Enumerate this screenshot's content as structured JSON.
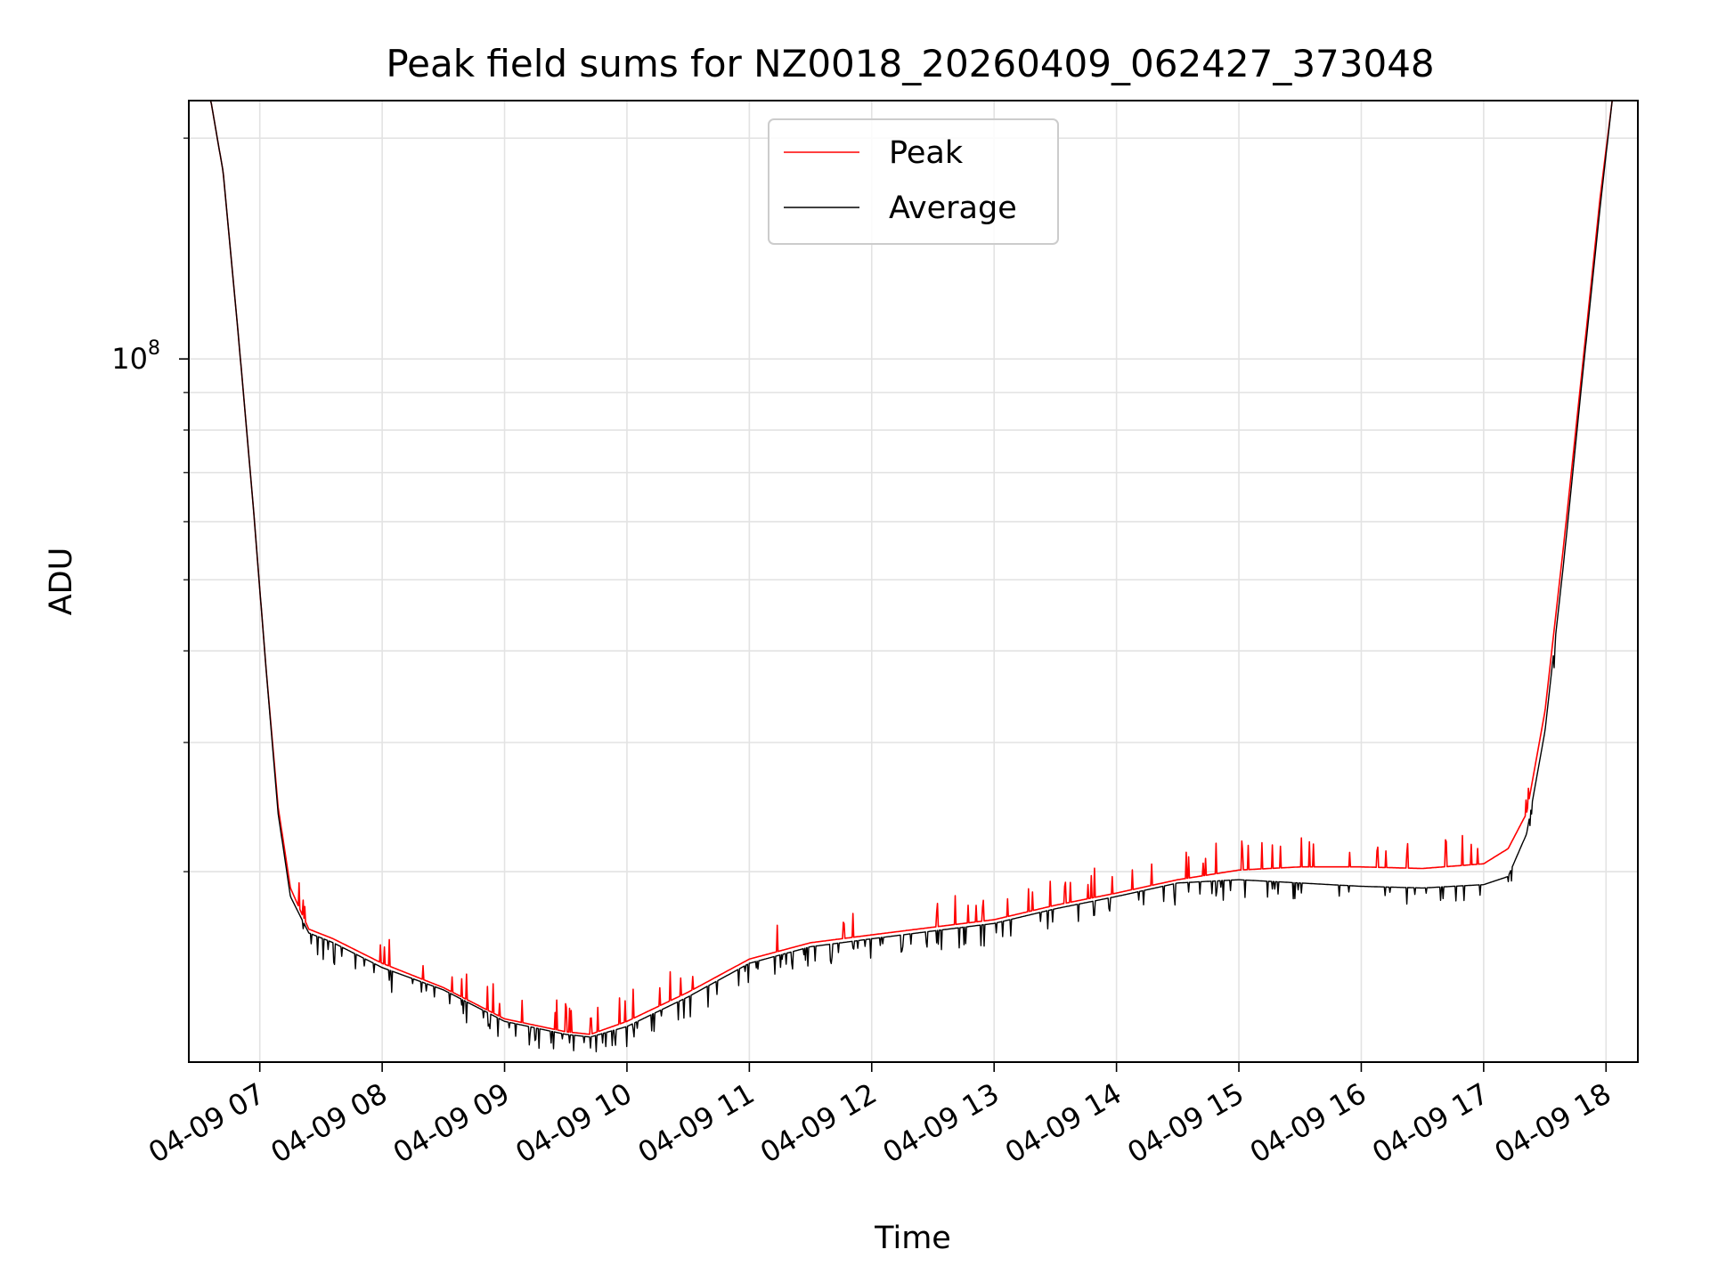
{
  "chart_data": {
    "type": "line",
    "title": "Peak field sums for NZ0018_20260409_062427_373048",
    "xlabel": "Time",
    "ylabel": "ADU",
    "y_scale": "log",
    "y_tick_label": {
      "base": "10",
      "exponent": "8",
      "value": 100000000
    },
    "ylim": [
      11000000,
      225000000
    ],
    "xlim_hours": [
      6.42,
      18.26
    ],
    "grid": true,
    "legend_position": "upper-center",
    "x_ticks": [
      {
        "hour": 7,
        "label": "04-09 07"
      },
      {
        "hour": 8,
        "label": "04-09 08"
      },
      {
        "hour": 9,
        "label": "04-09 09"
      },
      {
        "hour": 10,
        "label": "04-09 10"
      },
      {
        "hour": 11,
        "label": "04-09 11"
      },
      {
        "hour": 12,
        "label": "04-09 12"
      },
      {
        "hour": 13,
        "label": "04-09 13"
      },
      {
        "hour": 14,
        "label": "04-09 14"
      },
      {
        "hour": 15,
        "label": "04-09 15"
      },
      {
        "hour": 16,
        "label": "04-09 16"
      },
      {
        "hour": 17,
        "label": "04-09 17"
      },
      {
        "hour": 18,
        "label": "04-09 18"
      }
    ],
    "series": [
      {
        "name": "Peak",
        "color": "#ff0000",
        "hours": [
          6.42,
          6.6,
          6.7,
          6.82,
          6.95,
          7.05,
          7.15,
          7.25,
          7.4,
          7.6,
          8.0,
          8.5,
          9.0,
          9.5,
          9.7,
          10.0,
          10.5,
          11.0,
          11.5,
          12.0,
          12.5,
          13.0,
          13.5,
          14.0,
          14.5,
          15.0,
          15.5,
          16.0,
          16.5,
          17.0,
          17.2,
          17.35,
          17.5,
          17.65,
          17.8,
          17.95,
          18.05,
          18.26
        ],
        "values": [
          225000000,
          225000000,
          180000000,
          110000000,
          62000000,
          38000000,
          24500000,
          19000000,
          16700000,
          16200000,
          15000000,
          13900000,
          12600000,
          12100000,
          12000000,
          12500000,
          13700000,
          15200000,
          16000000,
          16400000,
          16800000,
          17200000,
          18000000,
          18700000,
          19500000,
          20100000,
          20300000,
          20300000,
          20200000,
          20500000,
          21500000,
          24000000,
          33000000,
          55000000,
          95000000,
          165000000,
          225000000,
          225000000
        ]
      },
      {
        "name": "Average",
        "color": "#000000",
        "hours": [
          6.42,
          6.6,
          6.7,
          6.82,
          6.95,
          7.05,
          7.15,
          7.25,
          7.4,
          7.6,
          8.0,
          8.5,
          9.0,
          9.5,
          9.7,
          10.0,
          10.5,
          11.0,
          11.5,
          12.0,
          12.5,
          13.0,
          13.5,
          14.0,
          14.5,
          15.0,
          15.5,
          16.0,
          16.5,
          17.0,
          17.2,
          17.35,
          17.5,
          17.65,
          17.8,
          17.95,
          18.05,
          18.26
        ],
        "values": [
          225000000,
          225000000,
          180000000,
          110000000,
          62000000,
          38000000,
          24000000,
          18500000,
          16500000,
          16000000,
          14800000,
          13800000,
          12500000,
          12000000,
          11900000,
          12300000,
          13500000,
          15000000,
          15800000,
          16200000,
          16600000,
          17000000,
          17800000,
          18500000,
          19300000,
          19500000,
          19300000,
          19100000,
          19000000,
          19200000,
          19700000,
          22500000,
          31000000,
          52000000,
          92000000,
          160000000,
          225000000,
          225000000
        ]
      }
    ]
  }
}
